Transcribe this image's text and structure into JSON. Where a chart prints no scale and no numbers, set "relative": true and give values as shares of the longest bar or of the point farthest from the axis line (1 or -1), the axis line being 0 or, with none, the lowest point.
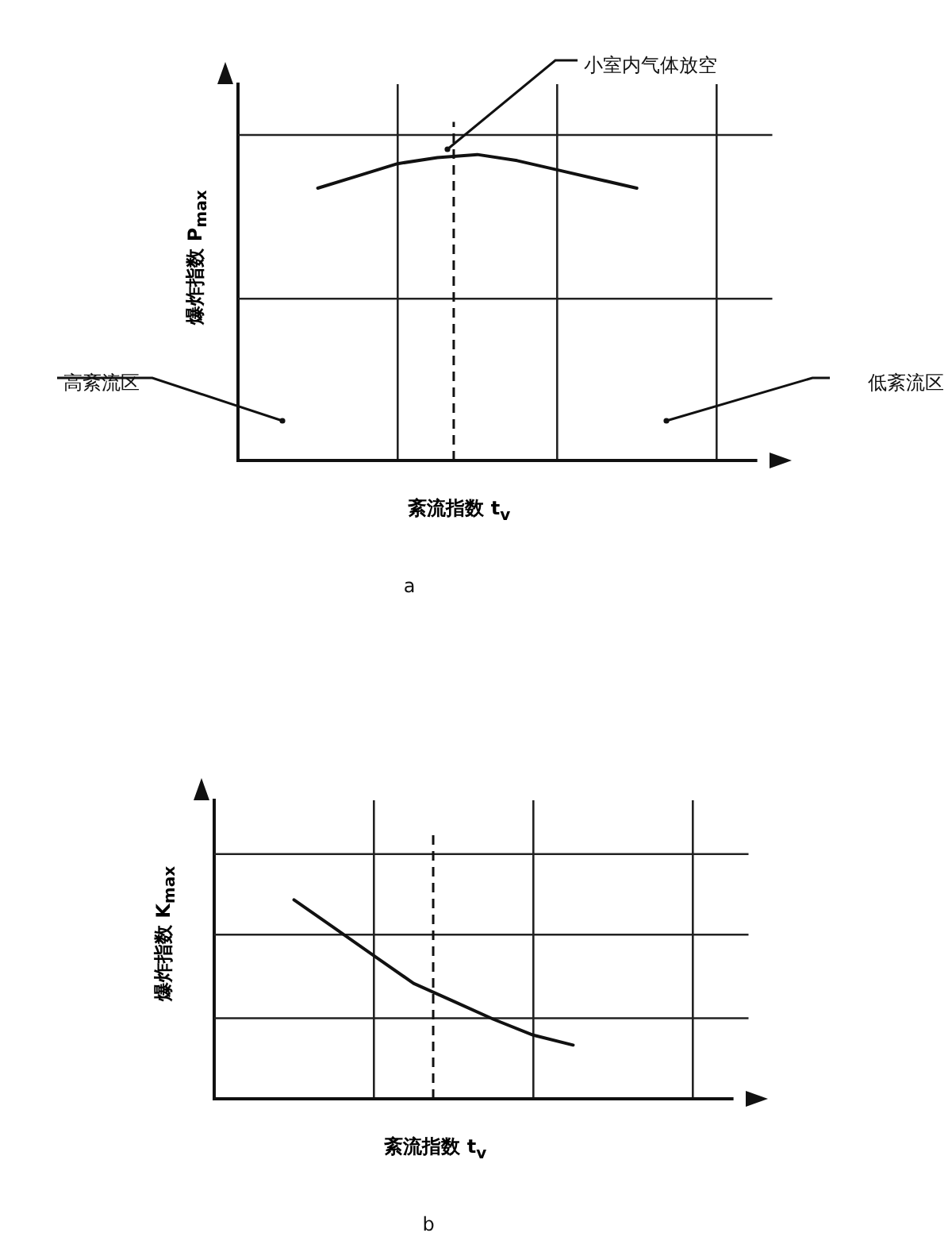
{
  "chart_data": [
    {
      "type": "line",
      "relative": true,
      "xlabel": "紊流指数 t$_{v}$",
      "ylabel": "爆炸指数 P$_{max}$",
      "categories": [
        null,
        null,
        null,
        null,
        null,
        null,
        null,
        null,
        null,
        null,
        null,
        null,
        null,
        null
      ],
      "grid": true,
      "legend": false,
      "marker": "none",
      "line_style": "solid",
      "series": [
        {
          "color": "#111111",
          "values": [
            null,
            null,
            0.89,
            0.93,
            0.97,
            0.99,
            1.0,
            0.98,
            0.95,
            0.92,
            0.89,
            null,
            null,
            null
          ]
        }
      ],
      "annotations": [
        "小室内气体放空",
        "高紊流区",
        "低紊流区",
        "a"
      ]
    },
    {
      "type": "line",
      "relative": true,
      "xlabel": "紊流指数 t$_{v}$",
      "ylabel": "爆炸指数 K$_{max}$",
      "categories": [
        null,
        null,
        null,
        null,
        null,
        null,
        null,
        null,
        null,
        null,
        null,
        null,
        null,
        null
      ],
      "grid": true,
      "legend": false,
      "marker": "none",
      "line_style": "solid",
      "series": [
        {
          "color": "#111111",
          "values": [
            null,
            null,
            1.0,
            0.86,
            0.72,
            0.58,
            0.49,
            0.4,
            0.32,
            0.27,
            null,
            null,
            null,
            null
          ]
        }
      ],
      "annotations": [
        "b"
      ]
    }
  ]
}
